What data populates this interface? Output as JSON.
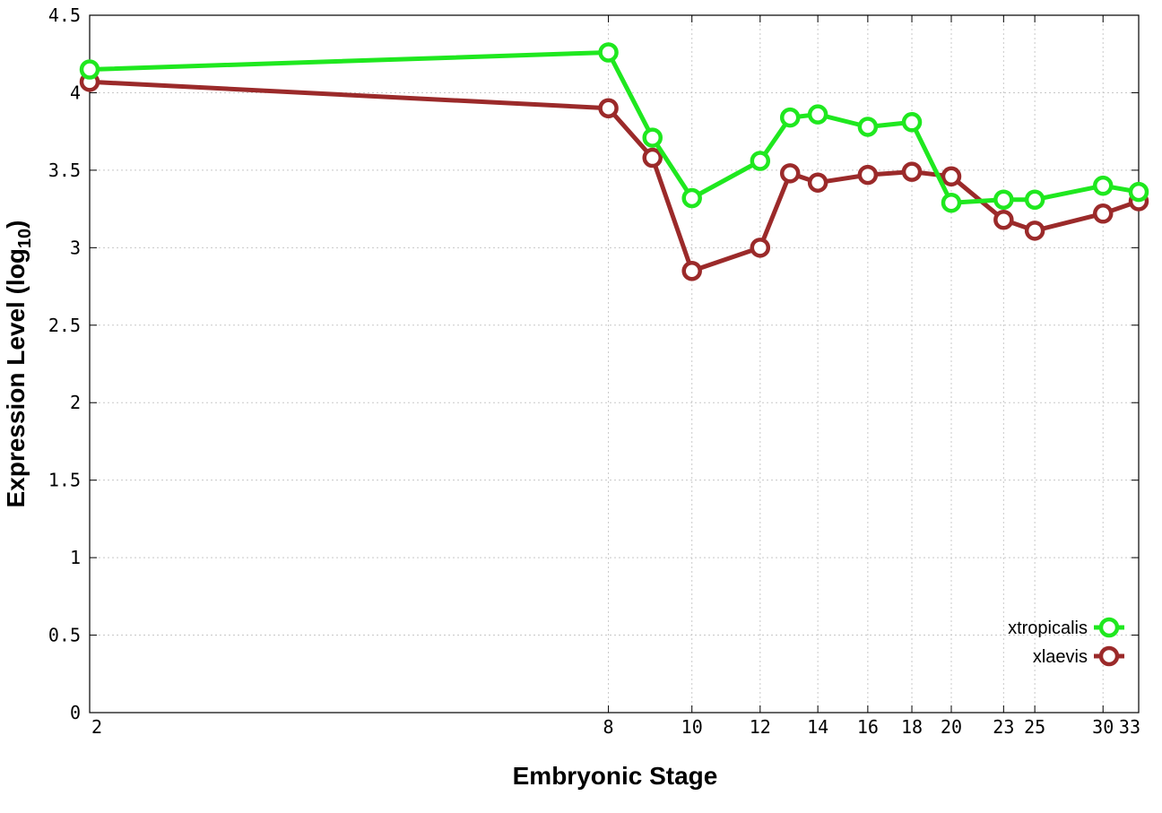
{
  "chart_data": {
    "type": "line",
    "title": "",
    "xlabel": "Embryonic Stage",
    "ylabel_main": "Expression Level (log",
    "ylabel_sub": "10",
    "ylabel_end": ")",
    "x_scale": "log",
    "xlim": [
      2,
      33
    ],
    "ylim": [
      0,
      4.5
    ],
    "x_ticks": [
      2,
      8,
      10,
      12,
      14,
      16,
      18,
      20,
      23,
      25,
      30,
      33
    ],
    "y_ticks": [
      0,
      0.5,
      1,
      1.5,
      2,
      2.5,
      3,
      3.5,
      4,
      4.5
    ],
    "y_tick_labels": [
      "0",
      "0.5",
      "1",
      "1.5",
      "2",
      "2.5",
      "3",
      "3.5",
      "4",
      "4.5"
    ],
    "x_tick_labels": [
      "2",
      "8",
      "10",
      "12",
      "14",
      "16",
      "18",
      "20",
      "23",
      "25",
      "30",
      "33"
    ],
    "grid": true,
    "legend_position": "bottom-right",
    "x": [
      2,
      8,
      9,
      10,
      12,
      13,
      14,
      16,
      18,
      20,
      23,
      25,
      30,
      33
    ],
    "series": [
      {
        "name": "xtropicalis",
        "color": "#1fe81f",
        "values": [
          4.15,
          4.26,
          3.71,
          3.32,
          3.56,
          3.84,
          3.86,
          3.78,
          3.81,
          3.29,
          3.31,
          3.31,
          3.4,
          3.36
        ]
      },
      {
        "name": "xlaevis",
        "color": "#9b2a2a",
        "values": [
          4.07,
          3.9,
          3.58,
          2.85,
          3.0,
          3.48,
          3.42,
          3.47,
          3.49,
          3.46,
          3.18,
          3.11,
          3.22,
          3.3
        ]
      }
    ]
  }
}
